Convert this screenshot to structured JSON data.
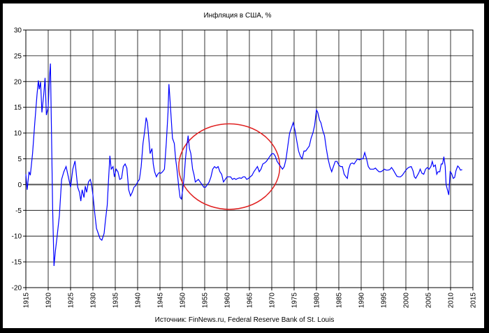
{
  "chart_data": {
    "type": "line",
    "title": "Инфляция в США, %",
    "source": "Источник: FinNews.ru, Federal Reserve Bank of St. Louis",
    "xlabel": "",
    "ylabel": "",
    "xlim": [
      1915,
      2015
    ],
    "ylim": [
      -20,
      30
    ],
    "x_ticks": [
      "1915",
      "1920",
      "1925",
      "1930",
      "1935",
      "1940",
      "1945",
      "1950",
      "1955",
      "1960",
      "1965",
      "1970",
      "1975",
      "1980",
      "1985",
      "1990",
      "1995",
      "2000",
      "2005",
      "2010",
      "2015"
    ],
    "y_ticks": [
      "30",
      "25",
      "20",
      "15",
      "10",
      "5",
      "0",
      "-5",
      "-10",
      "-15",
      "-20"
    ],
    "grid": true,
    "legend": "none",
    "colors": {
      "series": "#0000ff",
      "annotation": "#e02020",
      "grid": "#000000",
      "zero_line": "#555555"
    },
    "annotation": {
      "shape": "ellipse",
      "center": [
        1960.5,
        3.5
      ],
      "radius_years": 11.3,
      "radius_pct": 8.3
    },
    "series": [
      {
        "values": [
          [
            1915.0,
            2.0
          ],
          [
            1915.3,
            -1.0
          ],
          [
            1915.7,
            2.5
          ],
          [
            1916.0,
            1.8
          ],
          [
            1916.5,
            6.0
          ],
          [
            1917.0,
            12.0
          ],
          [
            1917.5,
            17.5
          ],
          [
            1917.8,
            20.2
          ],
          [
            1918.0,
            18.5
          ],
          [
            1918.3,
            19.9
          ],
          [
            1918.6,
            14.0
          ],
          [
            1919.0,
            17.5
          ],
          [
            1919.3,
            20.7
          ],
          [
            1919.6,
            13.5
          ],
          [
            1920.0,
            15.0
          ],
          [
            1920.3,
            21.0
          ],
          [
            1920.5,
            23.5
          ],
          [
            1920.7,
            12.0
          ],
          [
            1921.0,
            -5.0
          ],
          [
            1921.3,
            -15.8
          ],
          [
            1921.6,
            -13.0
          ],
          [
            1922.0,
            -10.0
          ],
          [
            1922.5,
            -6.0
          ],
          [
            1923.0,
            1.0
          ],
          [
            1923.5,
            2.5
          ],
          [
            1924.0,
            3.5
          ],
          [
            1924.5,
            1.5
          ],
          [
            1925.0,
            -0.5
          ],
          [
            1925.5,
            3.0
          ],
          [
            1926.0,
            4.6
          ],
          [
            1926.3,
            2.0
          ],
          [
            1926.6,
            -0.5
          ],
          [
            1927.0,
            -1.5
          ],
          [
            1927.3,
            -3.2
          ],
          [
            1927.6,
            -1.0
          ],
          [
            1928.0,
            -2.5
          ],
          [
            1928.3,
            -0.3
          ],
          [
            1928.6,
            -1.5
          ],
          [
            1929.0,
            0.5
          ],
          [
            1929.4,
            1.0
          ],
          [
            1929.7,
            0.0
          ],
          [
            1930.0,
            -2.0
          ],
          [
            1930.4,
            -5.5
          ],
          [
            1930.8,
            -8.5
          ],
          [
            1931.2,
            -9.5
          ],
          [
            1931.6,
            -10.5
          ],
          [
            1932.0,
            -10.8
          ],
          [
            1932.5,
            -9.5
          ],
          [
            1932.8,
            -7.0
          ],
          [
            1933.2,
            -4.0
          ],
          [
            1933.5,
            1.0
          ],
          [
            1933.8,
            5.6
          ],
          [
            1934.1,
            3.0
          ],
          [
            1934.5,
            3.5
          ],
          [
            1934.8,
            1.5
          ],
          [
            1935.2,
            3.0
          ],
          [
            1935.6,
            2.5
          ],
          [
            1936.0,
            1.0
          ],
          [
            1936.4,
            1.2
          ],
          [
            1936.8,
            3.5
          ],
          [
            1937.2,
            4.0
          ],
          [
            1937.6,
            3.2
          ],
          [
            1938.0,
            -1.0
          ],
          [
            1938.4,
            -2.2
          ],
          [
            1938.8,
            -1.5
          ],
          [
            1939.2,
            -0.5
          ],
          [
            1939.6,
            -0.2
          ],
          [
            1940.0,
            0.5
          ],
          [
            1940.4,
            1.0
          ],
          [
            1940.8,
            3.5
          ],
          [
            1941.2,
            8.0
          ],
          [
            1941.6,
            10.5
          ],
          [
            1941.9,
            13.0
          ],
          [
            1942.2,
            12.0
          ],
          [
            1942.5,
            9.0
          ],
          [
            1942.8,
            6.0
          ],
          [
            1943.2,
            7.0
          ],
          [
            1943.5,
            4.0
          ],
          [
            1943.8,
            2.5
          ],
          [
            1944.2,
            1.5
          ],
          [
            1944.5,
            2.0
          ],
          [
            1944.8,
            2.3
          ],
          [
            1945.2,
            2.2
          ],
          [
            1945.6,
            2.5
          ],
          [
            1946.0,
            3.0
          ],
          [
            1946.4,
            8.0
          ],
          [
            1946.8,
            14.0
          ],
          [
            1947.0,
            19.5
          ],
          [
            1947.2,
            17.0
          ],
          [
            1947.5,
            13.0
          ],
          [
            1947.8,
            9.0
          ],
          [
            1948.2,
            8.0
          ],
          [
            1948.5,
            5.0
          ],
          [
            1948.8,
            3.0
          ],
          [
            1949.2,
            -0.5
          ],
          [
            1949.5,
            -2.5
          ],
          [
            1949.8,
            -2.8
          ],
          [
            1950.1,
            -1.0
          ],
          [
            1950.4,
            1.5
          ],
          [
            1950.7,
            5.0
          ],
          [
            1951.0,
            7.5
          ],
          [
            1951.3,
            9.5
          ],
          [
            1951.6,
            7.0
          ],
          [
            1951.9,
            6.0
          ],
          [
            1952.3,
            3.0
          ],
          [
            1952.6,
            2.0
          ],
          [
            1952.9,
            0.5
          ],
          [
            1953.3,
            0.8
          ],
          [
            1953.6,
            1.0
          ],
          [
            1954.0,
            0.5
          ],
          [
            1954.4,
            0.0
          ],
          [
            1954.8,
            -0.5
          ],
          [
            1955.2,
            -0.5
          ],
          [
            1955.6,
            0.0
          ],
          [
            1956.0,
            0.5
          ],
          [
            1956.4,
            1.5
          ],
          [
            1956.8,
            3.0
          ],
          [
            1957.2,
            3.5
          ],
          [
            1957.6,
            3.2
          ],
          [
            1958.0,
            3.5
          ],
          [
            1958.4,
            2.5
          ],
          [
            1958.8,
            2.0
          ],
          [
            1959.2,
            0.5
          ],
          [
            1959.6,
            1.0
          ],
          [
            1960.0,
            1.5
          ],
          [
            1960.4,
            1.5
          ],
          [
            1960.8,
            1.5
          ],
          [
            1961.2,
            1.0
          ],
          [
            1961.6,
            1.2
          ],
          [
            1962.0,
            1.0
          ],
          [
            1962.4,
            1.2
          ],
          [
            1962.8,
            1.3
          ],
          [
            1963.2,
            1.2
          ],
          [
            1963.6,
            1.5
          ],
          [
            1964.0,
            1.5
          ],
          [
            1964.4,
            1.0
          ],
          [
            1964.8,
            1.2
          ],
          [
            1965.2,
            1.5
          ],
          [
            1965.6,
            1.8
          ],
          [
            1966.0,
            2.5
          ],
          [
            1966.4,
            3.0
          ],
          [
            1966.8,
            3.5
          ],
          [
            1967.2,
            2.5
          ],
          [
            1967.6,
            3.0
          ],
          [
            1968.0,
            4.0
          ],
          [
            1968.4,
            4.2
          ],
          [
            1968.8,
            4.5
          ],
          [
            1969.2,
            5.0
          ],
          [
            1969.6,
            5.5
          ],
          [
            1970.0,
            6.0
          ],
          [
            1970.4,
            6.0
          ],
          [
            1970.8,
            5.5
          ],
          [
            1971.2,
            4.5
          ],
          [
            1971.6,
            4.0
          ],
          [
            1972.0,
            3.5
          ],
          [
            1972.4,
            3.0
          ],
          [
            1972.8,
            3.5
          ],
          [
            1973.2,
            5.0
          ],
          [
            1973.6,
            7.5
          ],
          [
            1974.0,
            10.0
          ],
          [
            1974.4,
            11.0
          ],
          [
            1974.8,
            12.0
          ],
          [
            1975.2,
            10.5
          ],
          [
            1975.6,
            8.5
          ],
          [
            1976.0,
            6.5
          ],
          [
            1976.4,
            5.5
          ],
          [
            1976.8,
            5.0
          ],
          [
            1977.2,
            6.5
          ],
          [
            1977.6,
            6.5
          ],
          [
            1978.0,
            7.0
          ],
          [
            1978.4,
            7.5
          ],
          [
            1978.8,
            9.0
          ],
          [
            1979.2,
            10.0
          ],
          [
            1979.6,
            11.5
          ],
          [
            1980.0,
            14.5
          ],
          [
            1980.3,
            14.0
          ],
          [
            1980.7,
            12.5
          ],
          [
            1981.0,
            12.0
          ],
          [
            1981.4,
            10.5
          ],
          [
            1981.8,
            9.5
          ],
          [
            1982.2,
            7.0
          ],
          [
            1982.6,
            5.0
          ],
          [
            1983.0,
            3.5
          ],
          [
            1983.4,
            2.5
          ],
          [
            1983.8,
            3.5
          ],
          [
            1984.2,
            4.5
          ],
          [
            1984.6,
            4.5
          ],
          [
            1985.0,
            3.8
          ],
          [
            1985.4,
            3.5
          ],
          [
            1985.8,
            3.5
          ],
          [
            1986.2,
            2.0
          ],
          [
            1986.6,
            1.5
          ],
          [
            1986.9,
            1.2
          ],
          [
            1987.2,
            3.0
          ],
          [
            1987.6,
            4.0
          ],
          [
            1988.0,
            4.2
          ],
          [
            1988.4,
            4.0
          ],
          [
            1988.8,
            4.5
          ],
          [
            1989.2,
            5.0
          ],
          [
            1989.6,
            4.8
          ],
          [
            1990.0,
            5.0
          ],
          [
            1990.4,
            5.0
          ],
          [
            1990.8,
            6.2
          ],
          [
            1991.2,
            5.0
          ],
          [
            1991.6,
            3.5
          ],
          [
            1992.0,
            3.0
          ],
          [
            1992.4,
            3.0
          ],
          [
            1992.8,
            3.0
          ],
          [
            1993.2,
            3.2
          ],
          [
            1993.6,
            2.8
          ],
          [
            1994.0,
            2.5
          ],
          [
            1994.4,
            2.5
          ],
          [
            1994.8,
            2.7
          ],
          [
            1995.2,
            3.0
          ],
          [
            1995.6,
            2.8
          ],
          [
            1996.0,
            2.8
          ],
          [
            1996.4,
            2.9
          ],
          [
            1996.8,
            3.3
          ],
          [
            1997.2,
            2.8
          ],
          [
            1997.6,
            2.2
          ],
          [
            1998.0,
            1.6
          ],
          [
            1998.4,
            1.5
          ],
          [
            1998.8,
            1.5
          ],
          [
            1999.2,
            1.8
          ],
          [
            1999.6,
            2.3
          ],
          [
            2000.0,
            2.8
          ],
          [
            2000.4,
            3.2
          ],
          [
            2000.8,
            3.4
          ],
          [
            2001.2,
            3.5
          ],
          [
            2001.6,
            2.7
          ],
          [
            2001.9,
            1.5
          ],
          [
            2002.2,
            1.2
          ],
          [
            2002.6,
            1.8
          ],
          [
            2002.9,
            2.3
          ],
          [
            2003.2,
            3.0
          ],
          [
            2003.6,
            2.2
          ],
          [
            2004.0,
            2.0
          ],
          [
            2004.4,
            3.0
          ],
          [
            2004.8,
            3.3
          ],
          [
            2005.2,
            3.0
          ],
          [
            2005.6,
            3.5
          ],
          [
            2005.9,
            4.5
          ],
          [
            2006.2,
            3.5
          ],
          [
            2006.6,
            3.8
          ],
          [
            2006.9,
            2.0
          ],
          [
            2007.2,
            2.5
          ],
          [
            2007.6,
            2.5
          ],
          [
            2007.9,
            4.0
          ],
          [
            2008.2,
            4.0
          ],
          [
            2008.5,
            5.4
          ],
          [
            2008.8,
            3.5
          ],
          [
            2009.0,
            0.0
          ],
          [
            2009.3,
            -1.0
          ],
          [
            2009.6,
            -2.0
          ],
          [
            2009.9,
            2.5
          ],
          [
            2010.2,
            2.2
          ],
          [
            2010.6,
            1.2
          ],
          [
            2010.9,
            1.4
          ],
          [
            2011.2,
            2.7
          ],
          [
            2011.6,
            3.6
          ],
          [
            2011.9,
            3.3
          ],
          [
            2012.2,
            2.8
          ],
          [
            2012.6,
            2.9
          ]
        ]
      }
    ]
  }
}
